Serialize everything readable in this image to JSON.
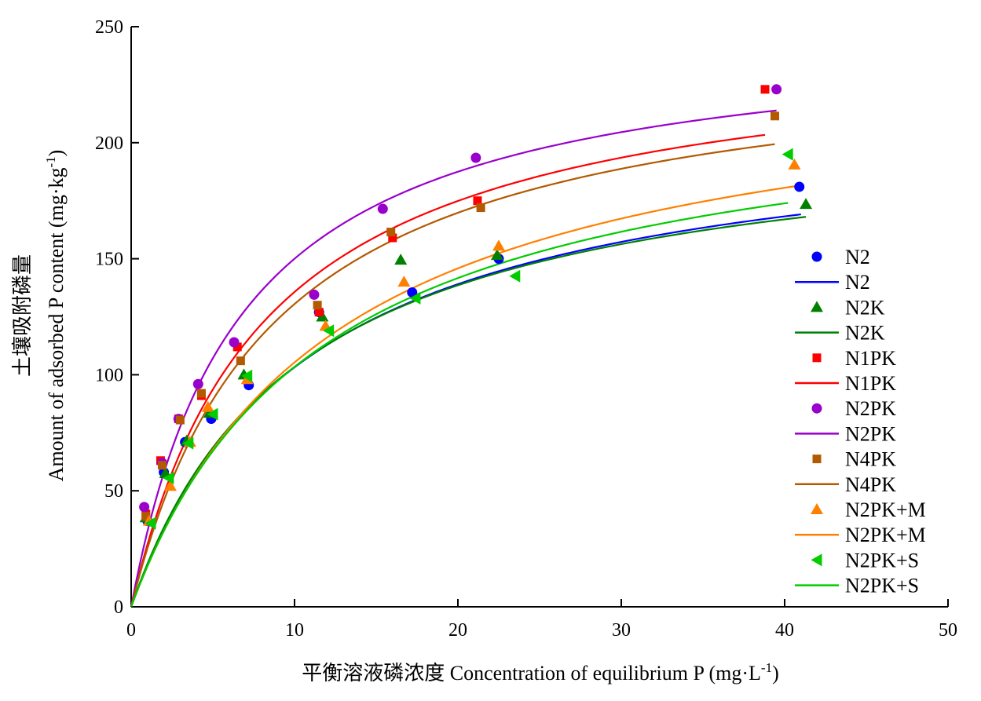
{
  "chart_data": {
    "type": "scatter",
    "title": "",
    "xlabel": "平衡溶液磷浓度 Concentration of equilibrium P (mg·L",
    "xlabel_sup": "-1",
    "xlabel_end": ")",
    "ylabel_cn": "土壤吸附磷量",
    "ylabel": "Amount of adsorbed P content (mg·kg",
    "ylabel_sup": "-1",
    "ylabel_end": ")",
    "xlim": [
      0,
      50
    ],
    "ylim": [
      0,
      250
    ],
    "xticks": [
      "0",
      "10",
      "20",
      "30",
      "40",
      "50"
    ],
    "yticks": [
      "0",
      "50",
      "100",
      "150",
      "200",
      "250"
    ],
    "grid": false,
    "legend_position": "right",
    "series": [
      {
        "name": "N2",
        "marker": "circle",
        "color": "#0000ff",
        "points": [
          [
            1.0,
            37
          ],
          [
            2.0,
            58
          ],
          [
            3.3,
            71
          ],
          [
            4.9,
            81
          ],
          [
            7.2,
            95.5
          ],
          [
            11.5,
            127
          ],
          [
            17.2,
            135.5
          ],
          [
            22.5,
            150
          ],
          [
            40.9,
            181
          ]
        ],
        "fit": {
          "name": "N2",
          "qmax": 213,
          "k": 0.094,
          "xmax": 41
        }
      },
      {
        "name": "N2K",
        "marker": "triangle",
        "color": "#008000",
        "points": [
          [
            0.9,
            38.5
          ],
          [
            2.1,
            57.5
          ],
          [
            3.4,
            71.5
          ],
          [
            4.8,
            83.5
          ],
          [
            6.9,
            100
          ],
          [
            11.7,
            125
          ],
          [
            16.5,
            149.5
          ],
          [
            22.4,
            151.5
          ],
          [
            41.3,
            173.5
          ]
        ],
        "fit": {
          "name": "N2K",
          "qmax": 210,
          "k": 0.097,
          "xmax": 41.3
        }
      },
      {
        "name": "N1PK",
        "marker": "square",
        "color": "#ff0000",
        "points": [
          [
            0.9,
            40
          ],
          [
            1.8,
            63
          ],
          [
            2.9,
            81
          ],
          [
            4.3,
            91
          ],
          [
            6.5,
            112
          ],
          [
            11.5,
            127
          ],
          [
            16.0,
            159
          ],
          [
            21.2,
            175
          ],
          [
            38.8,
            223
          ]
        ],
        "fit": {
          "name": "N1PK",
          "qmax": 246,
          "k": 0.123,
          "xmax": 38.8
        }
      },
      {
        "name": "N2PK",
        "marker": "circle",
        "color": "#9900cc",
        "points": [
          [
            0.8,
            43
          ],
          [
            1.9,
            62
          ],
          [
            2.9,
            81
          ],
          [
            4.1,
            96
          ],
          [
            6.3,
            114
          ],
          [
            11.2,
            134.5
          ],
          [
            15.4,
            171.5
          ],
          [
            21.1,
            193.5
          ],
          [
            39.5,
            223
          ]
        ],
        "fit": {
          "name": "N2PK",
          "qmax": 250,
          "k": 0.15,
          "xmax": 39.5
        }
      },
      {
        "name": "N4PK",
        "marker": "square",
        "color": "#b35900",
        "points": [
          [
            0.9,
            39
          ],
          [
            1.9,
            61
          ],
          [
            3.0,
            80.5
          ],
          [
            4.3,
            92
          ],
          [
            6.7,
            106
          ],
          [
            11.4,
            130
          ],
          [
            15.9,
            161.5
          ],
          [
            21.4,
            172
          ],
          [
            39.4,
            211.5
          ]
        ],
        "fit": {
          "name": "N4PK",
          "qmax": 243,
          "k": 0.116,
          "xmax": 39.4
        }
      },
      {
        "name": "N2PK+M",
        "marker": "triangle",
        "color": "#ff8000",
        "points": [
          [
            1.1,
            37
          ],
          [
            2.4,
            52
          ],
          [
            3.6,
            71
          ],
          [
            4.7,
            86
          ],
          [
            7.1,
            98
          ],
          [
            11.9,
            121
          ],
          [
            16.7,
            140
          ],
          [
            22.5,
            155.5
          ],
          [
            40.6,
            190.5
          ]
        ],
        "fit": {
          "name": "N2PK+M",
          "qmax": 237,
          "k": 0.08,
          "xmax": 40.6
        }
      },
      {
        "name": "N2PK+S",
        "marker": "triangle-left",
        "color": "#00cc00",
        "points": [
          [
            1.2,
            36
          ],
          [
            2.3,
            55.5
          ],
          [
            3.5,
            70.5
          ],
          [
            5.0,
            83
          ],
          [
            7.1,
            99.5
          ],
          [
            12.1,
            119
          ],
          [
            17.4,
            133
          ],
          [
            23.5,
            142.5
          ],
          [
            40.2,
            195
          ]
        ],
        "fit": {
          "name": "N2PK+S",
          "qmax": 225,
          "k": 0.085,
          "xmax": 40.2
        }
      }
    ]
  }
}
